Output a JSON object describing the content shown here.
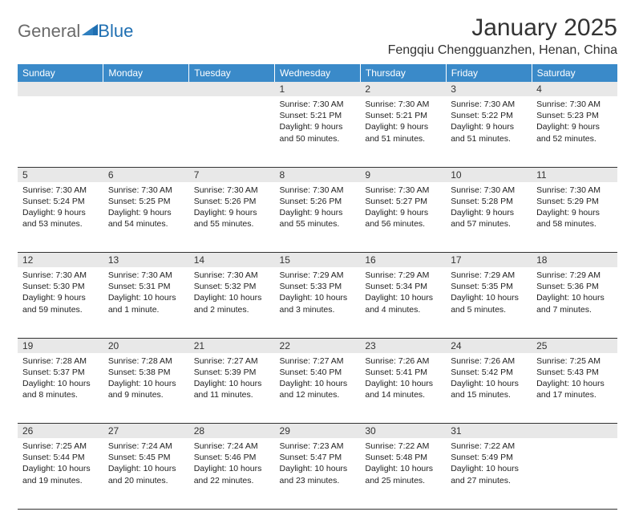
{
  "logo": {
    "general": "General",
    "blue": "Blue"
  },
  "title": "January 2025",
  "location": "Fengqiu Chengguanzhen, Henan, China",
  "colors": {
    "header_bg": "#3a8ac9",
    "header_text": "#ffffff",
    "daynum_bg": "#e8e8e8",
    "logo_gray": "#6a6a6a",
    "logo_blue": "#1f6fb2"
  },
  "weekdays": [
    "Sunday",
    "Monday",
    "Tuesday",
    "Wednesday",
    "Thursday",
    "Friday",
    "Saturday"
  ],
  "weeks": [
    {
      "nums": [
        "",
        "",
        "",
        "1",
        "2",
        "3",
        "4"
      ],
      "cells": [
        null,
        null,
        null,
        {
          "sunrise": "Sunrise: 7:30 AM",
          "sunset": "Sunset: 5:21 PM",
          "daylight": "Daylight: 9 hours and 50 minutes."
        },
        {
          "sunrise": "Sunrise: 7:30 AM",
          "sunset": "Sunset: 5:21 PM",
          "daylight": "Daylight: 9 hours and 51 minutes."
        },
        {
          "sunrise": "Sunrise: 7:30 AM",
          "sunset": "Sunset: 5:22 PM",
          "daylight": "Daylight: 9 hours and 51 minutes."
        },
        {
          "sunrise": "Sunrise: 7:30 AM",
          "sunset": "Sunset: 5:23 PM",
          "daylight": "Daylight: 9 hours and 52 minutes."
        }
      ]
    },
    {
      "nums": [
        "5",
        "6",
        "7",
        "8",
        "9",
        "10",
        "11"
      ],
      "cells": [
        {
          "sunrise": "Sunrise: 7:30 AM",
          "sunset": "Sunset: 5:24 PM",
          "daylight": "Daylight: 9 hours and 53 minutes."
        },
        {
          "sunrise": "Sunrise: 7:30 AM",
          "sunset": "Sunset: 5:25 PM",
          "daylight": "Daylight: 9 hours and 54 minutes."
        },
        {
          "sunrise": "Sunrise: 7:30 AM",
          "sunset": "Sunset: 5:26 PM",
          "daylight": "Daylight: 9 hours and 55 minutes."
        },
        {
          "sunrise": "Sunrise: 7:30 AM",
          "sunset": "Sunset: 5:26 PM",
          "daylight": "Daylight: 9 hours and 55 minutes."
        },
        {
          "sunrise": "Sunrise: 7:30 AM",
          "sunset": "Sunset: 5:27 PM",
          "daylight": "Daylight: 9 hours and 56 minutes."
        },
        {
          "sunrise": "Sunrise: 7:30 AM",
          "sunset": "Sunset: 5:28 PM",
          "daylight": "Daylight: 9 hours and 57 minutes."
        },
        {
          "sunrise": "Sunrise: 7:30 AM",
          "sunset": "Sunset: 5:29 PM",
          "daylight": "Daylight: 9 hours and 58 minutes."
        }
      ]
    },
    {
      "nums": [
        "12",
        "13",
        "14",
        "15",
        "16",
        "17",
        "18"
      ],
      "cells": [
        {
          "sunrise": "Sunrise: 7:30 AM",
          "sunset": "Sunset: 5:30 PM",
          "daylight": "Daylight: 9 hours and 59 minutes."
        },
        {
          "sunrise": "Sunrise: 7:30 AM",
          "sunset": "Sunset: 5:31 PM",
          "daylight": "Daylight: 10 hours and 1 minute."
        },
        {
          "sunrise": "Sunrise: 7:30 AM",
          "sunset": "Sunset: 5:32 PM",
          "daylight": "Daylight: 10 hours and 2 minutes."
        },
        {
          "sunrise": "Sunrise: 7:29 AM",
          "sunset": "Sunset: 5:33 PM",
          "daylight": "Daylight: 10 hours and 3 minutes."
        },
        {
          "sunrise": "Sunrise: 7:29 AM",
          "sunset": "Sunset: 5:34 PM",
          "daylight": "Daylight: 10 hours and 4 minutes."
        },
        {
          "sunrise": "Sunrise: 7:29 AM",
          "sunset": "Sunset: 5:35 PM",
          "daylight": "Daylight: 10 hours and 5 minutes."
        },
        {
          "sunrise": "Sunrise: 7:29 AM",
          "sunset": "Sunset: 5:36 PM",
          "daylight": "Daylight: 10 hours and 7 minutes."
        }
      ]
    },
    {
      "nums": [
        "19",
        "20",
        "21",
        "22",
        "23",
        "24",
        "25"
      ],
      "cells": [
        {
          "sunrise": "Sunrise: 7:28 AM",
          "sunset": "Sunset: 5:37 PM",
          "daylight": "Daylight: 10 hours and 8 minutes."
        },
        {
          "sunrise": "Sunrise: 7:28 AM",
          "sunset": "Sunset: 5:38 PM",
          "daylight": "Daylight: 10 hours and 9 minutes."
        },
        {
          "sunrise": "Sunrise: 7:27 AM",
          "sunset": "Sunset: 5:39 PM",
          "daylight": "Daylight: 10 hours and 11 minutes."
        },
        {
          "sunrise": "Sunrise: 7:27 AM",
          "sunset": "Sunset: 5:40 PM",
          "daylight": "Daylight: 10 hours and 12 minutes."
        },
        {
          "sunrise": "Sunrise: 7:26 AM",
          "sunset": "Sunset: 5:41 PM",
          "daylight": "Daylight: 10 hours and 14 minutes."
        },
        {
          "sunrise": "Sunrise: 7:26 AM",
          "sunset": "Sunset: 5:42 PM",
          "daylight": "Daylight: 10 hours and 15 minutes."
        },
        {
          "sunrise": "Sunrise: 7:25 AM",
          "sunset": "Sunset: 5:43 PM",
          "daylight": "Daylight: 10 hours and 17 minutes."
        }
      ]
    },
    {
      "nums": [
        "26",
        "27",
        "28",
        "29",
        "30",
        "31",
        ""
      ],
      "cells": [
        {
          "sunrise": "Sunrise: 7:25 AM",
          "sunset": "Sunset: 5:44 PM",
          "daylight": "Daylight: 10 hours and 19 minutes."
        },
        {
          "sunrise": "Sunrise: 7:24 AM",
          "sunset": "Sunset: 5:45 PM",
          "daylight": "Daylight: 10 hours and 20 minutes."
        },
        {
          "sunrise": "Sunrise: 7:24 AM",
          "sunset": "Sunset: 5:46 PM",
          "daylight": "Daylight: 10 hours and 22 minutes."
        },
        {
          "sunrise": "Sunrise: 7:23 AM",
          "sunset": "Sunset: 5:47 PM",
          "daylight": "Daylight: 10 hours and 23 minutes."
        },
        {
          "sunrise": "Sunrise: 7:22 AM",
          "sunset": "Sunset: 5:48 PM",
          "daylight": "Daylight: 10 hours and 25 minutes."
        },
        {
          "sunrise": "Sunrise: 7:22 AM",
          "sunset": "Sunset: 5:49 PM",
          "daylight": "Daylight: 10 hours and 27 minutes."
        },
        null
      ]
    }
  ]
}
